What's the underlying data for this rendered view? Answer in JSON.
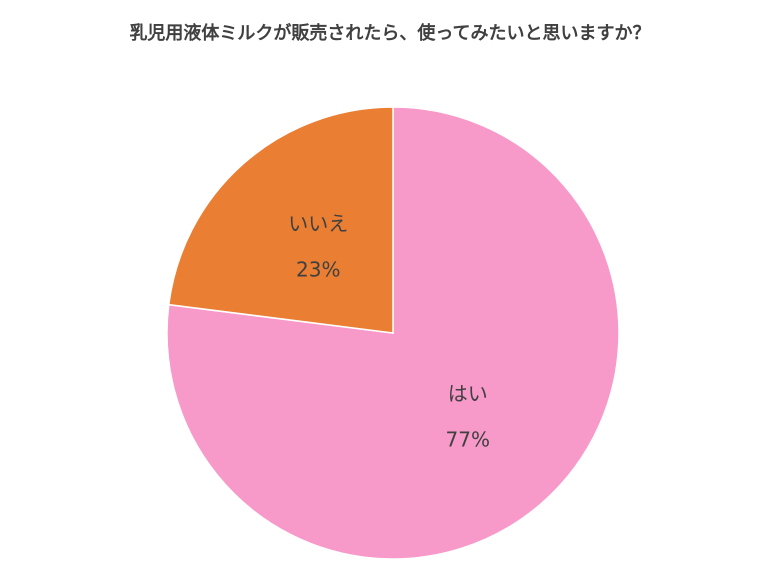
{
  "chart_data": {
    "type": "pie",
    "title": "乳児用液体ミルクが販売されたら、使ってみたいと思いますか？",
    "categories": [
      "はい",
      "いいえ"
    ],
    "values": [
      77,
      23
    ],
    "value_labels": [
      "77%",
      "23%"
    ],
    "colors": [
      "#f799c9",
      "#ea7e32"
    ]
  }
}
